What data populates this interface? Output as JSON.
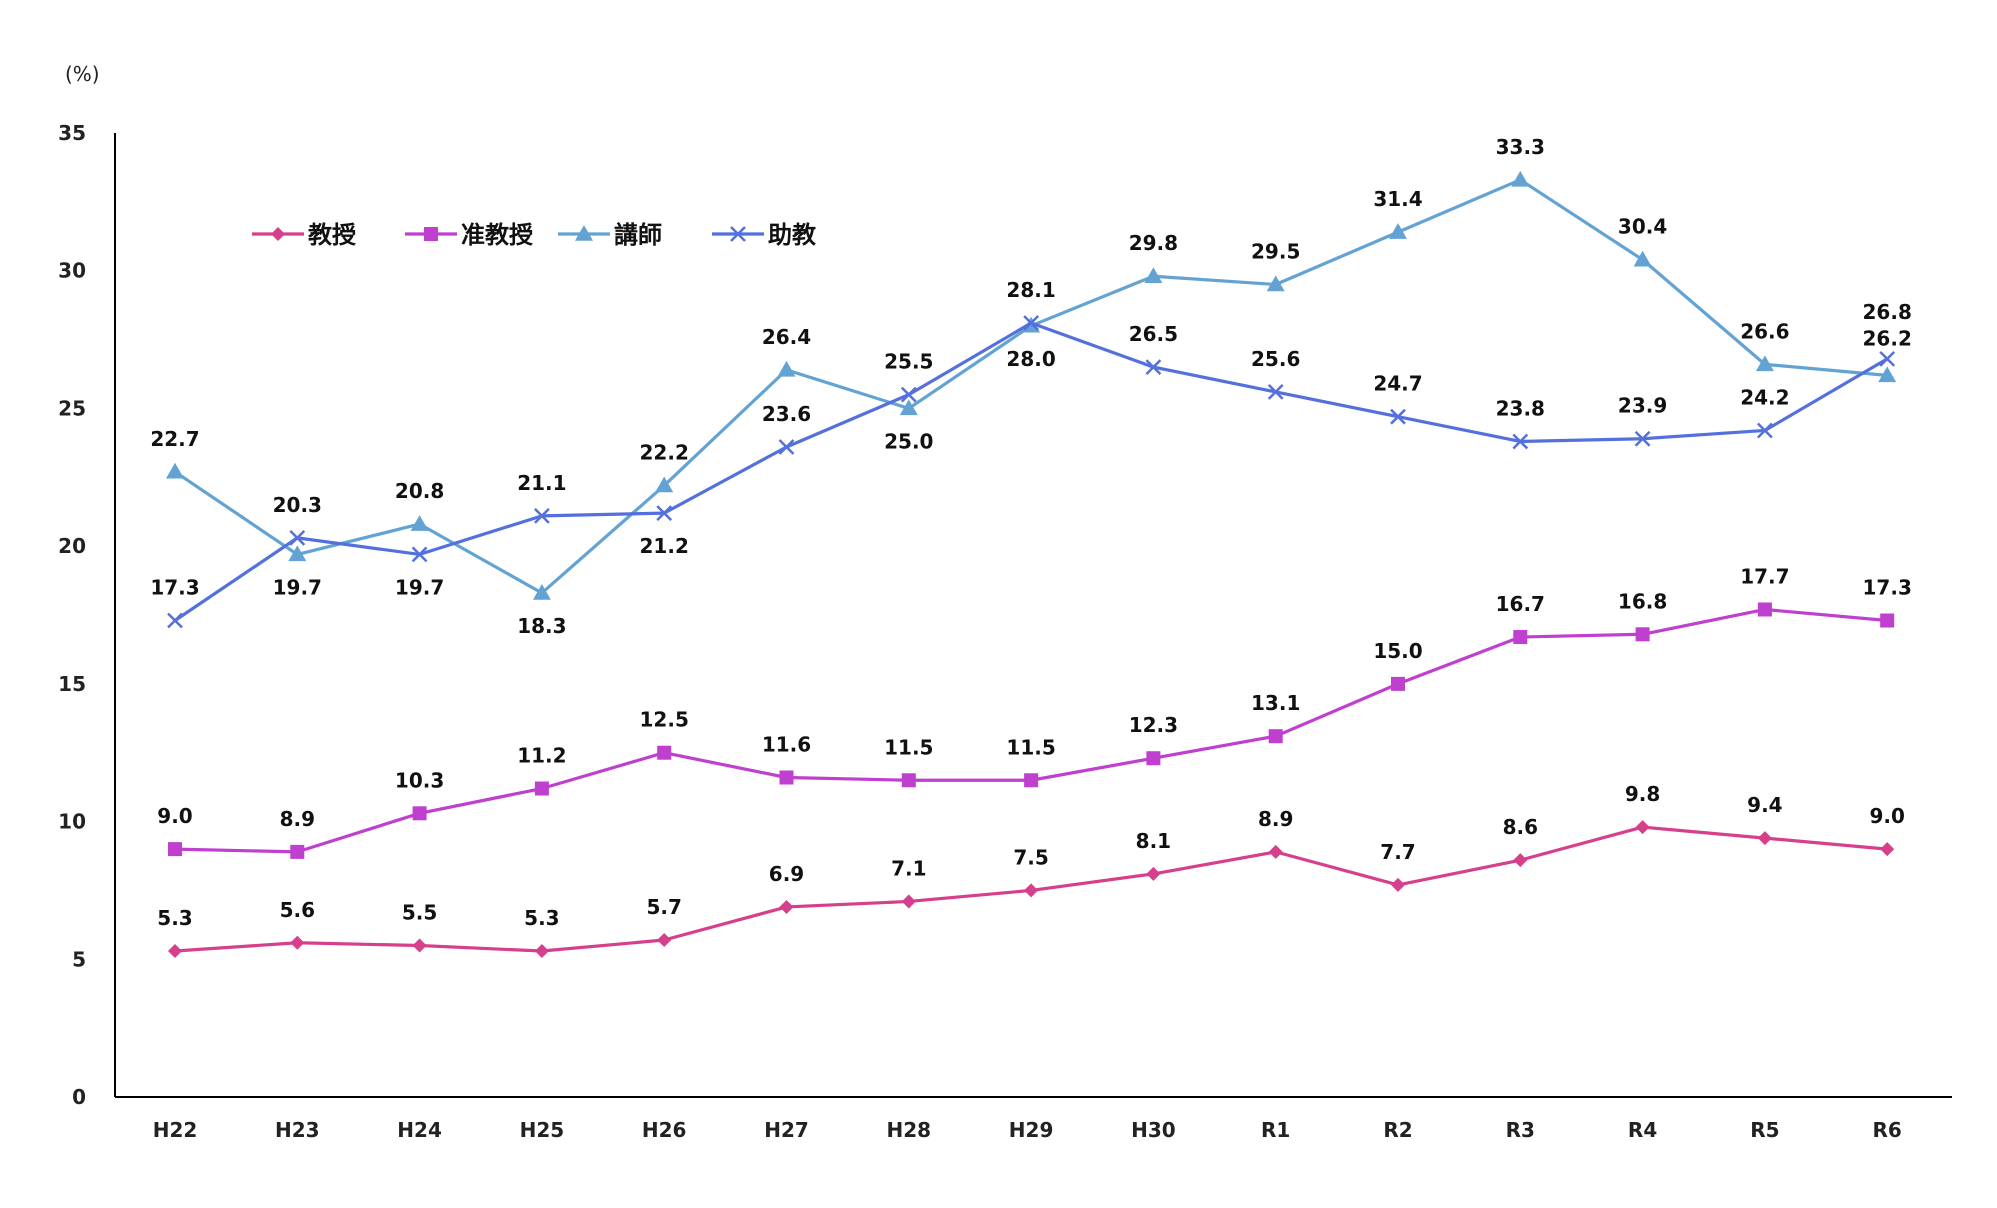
{
  "chart_data": {
    "type": "line",
    "ylabel": "(%)",
    "ylim": [
      0,
      35
    ],
    "yticks": [
      0,
      5,
      10,
      15,
      20,
      25,
      30,
      35
    ],
    "grid": false,
    "legend_position": "top-left",
    "categories": [
      "H22",
      "H23",
      "H24",
      "H25",
      "H26",
      "H27",
      "H28",
      "H29",
      "H30",
      "R1",
      "R2",
      "R3",
      "R4",
      "R5",
      "R6"
    ],
    "series": [
      {
        "name": "教授",
        "color": "#d63f8c",
        "marker": "diamond",
        "values": [
          5.3,
          5.6,
          5.5,
          5.3,
          5.7,
          6.9,
          7.1,
          7.5,
          8.1,
          8.9,
          7.7,
          8.6,
          9.8,
          9.4,
          9.0
        ],
        "labels": [
          "5.3",
          "5.6",
          "5.5",
          "5.3",
          "5.7",
          "6.9",
          "7.1",
          "7.5",
          "8.1",
          "8.9",
          "7.7",
          "8.6",
          "9.8",
          "9.4",
          "9.0"
        ]
      },
      {
        "name": "准教授",
        "color": "#bf3fcf",
        "marker": "square",
        "values": [
          9.0,
          8.9,
          10.3,
          11.2,
          12.5,
          11.6,
          11.5,
          11.5,
          12.3,
          13.1,
          15.0,
          16.7,
          16.8,
          17.7,
          17.3
        ],
        "labels": [
          "9.0",
          "8.9",
          "10.3",
          "11.2",
          "12.5",
          "11.6",
          "11.5",
          "11.5",
          "12.3",
          "13.1",
          "15.0",
          "16.7",
          "16.8",
          "17.7",
          "17.3"
        ]
      },
      {
        "name": "講師",
        "color": "#62a3d4",
        "marker": "triangle",
        "values": [
          22.7,
          19.7,
          20.8,
          18.3,
          22.2,
          26.4,
          25.0,
          28.0,
          29.8,
          29.5,
          31.4,
          33.3,
          30.4,
          26.6,
          26.2
        ],
        "labels": [
          "22.7",
          "19.7",
          "20.8",
          "18.3",
          "22.2",
          "26.4",
          "25.0",
          "28.0",
          "29.8",
          "29.5",
          "31.4",
          "33.3",
          "30.4",
          "26.6",
          "26.2"
        ]
      },
      {
        "name": "助教",
        "color": "#5470dd",
        "marker": "x",
        "values": [
          17.3,
          20.3,
          19.7,
          21.1,
          21.2,
          23.6,
          25.5,
          28.1,
          26.5,
          25.6,
          24.7,
          23.8,
          23.9,
          24.2,
          26.8
        ],
        "labels": [
          "17.3",
          "20.3",
          "19.7",
          "21.1",
          "21.2",
          "23.6",
          "25.5",
          "28.1",
          "26.5",
          "25.6",
          "24.7",
          "23.8",
          "23.9",
          "24.2",
          "26.8"
        ]
      }
    ]
  }
}
